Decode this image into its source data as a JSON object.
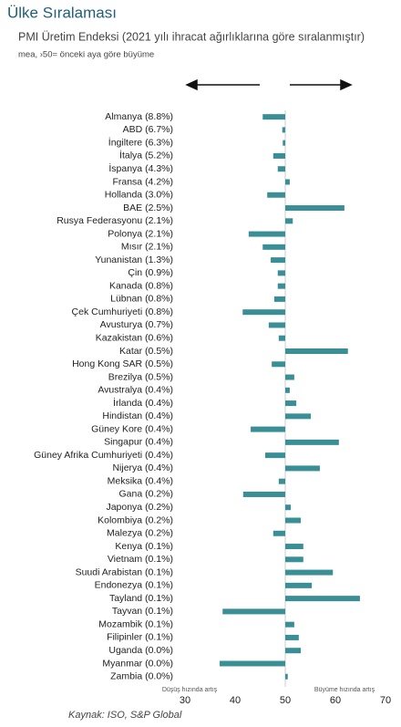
{
  "chart_data": {
    "type": "bar",
    "orientation": "horizontal",
    "title": "Ülke Sıralaması",
    "subtitle": "PMI Üretim Endeksi (2021 yılı ihracat ağırlıklarına göre sıralanmıştır)",
    "note": "mea, ›50= önceki aya göre büyüme",
    "annotation_left": "Düşüş hızında artış",
    "annotation_right": "Büyüme hızında artış",
    "source": "Kaynak: ISO, S&P Global",
    "categories": [
      "Almanya (8.8%)",
      "ABD (6.7%)",
      "İngiltere (6.3%)",
      "İtalya (5.2%)",
      "İspanya (4.3%)",
      "Fransa (4.2%)",
      "Hollanda (3.0%)",
      "BAE (2.5%)",
      "Rusya Federasyonu (2.1%)",
      "Polonya (2.1%)",
      "Mısır (2.1%)",
      "Yunanistan (1.3%)",
      "Çin (0.9%)",
      "Kanada (0.8%)",
      "Lübnan (0.8%)",
      "Çek Cumhuriyeti (0.8%)",
      "Avusturya (0.7%)",
      "Kazakistan (0.6%)",
      "Katar (0.5%)",
      "Hong Kong SAR (0.5%)",
      "Brezilya (0.5%)",
      "Avustralya (0.4%)",
      "İrlanda (0.4%)",
      "Hindistan (0.4%)",
      "Güney Kore (0.4%)",
      "Singapur (0.4%)",
      "Güney Afrika Cumhuriyeti (0.4%)",
      "Nijerya (0.4%)",
      "Meksika (0.4%)",
      "Gana (0.2%)",
      "Japonya (0.2%)",
      "Kolombiya (0.2%)",
      "Malezya (0.2%)",
      "Kenya (0.1%)",
      "Vietnam (0.1%)",
      "Suudi Arabistan (0.1%)",
      "Endonezya (0.1%)",
      "Tayland (0.1%)",
      "Tayvan (0.1%)",
      "Mozambik (0.1%)",
      "Filipinler (0.1%)",
      "Uganda (0.0%)",
      "Myanmar (0.0%)",
      "Zambia (0.0%)"
    ],
    "values": [
      45.5,
      49.4,
      49.5,
      47.6,
      48.5,
      50.9,
      46.4,
      61.8,
      51.5,
      42.7,
      45.5,
      47.1,
      48.5,
      48.5,
      47.8,
      41.5,
      46.7,
      48.7,
      62.5,
      47.3,
      51.8,
      50.9,
      52.2,
      55.1,
      43.1,
      60.7,
      46.0,
      56.9,
      48.7,
      41.6,
      51.1,
      53.1,
      47.6,
      53.6,
      53.6,
      59.5,
      55.3,
      64.9,
      37.5,
      51.8,
      52.7,
      53.1,
      36.9,
      50.5
    ],
    "color": "#3a8f97",
    "baseline": 50,
    "xlim": [
      30,
      70
    ],
    "xticks": [
      30,
      40,
      50,
      60,
      70
    ]
  }
}
